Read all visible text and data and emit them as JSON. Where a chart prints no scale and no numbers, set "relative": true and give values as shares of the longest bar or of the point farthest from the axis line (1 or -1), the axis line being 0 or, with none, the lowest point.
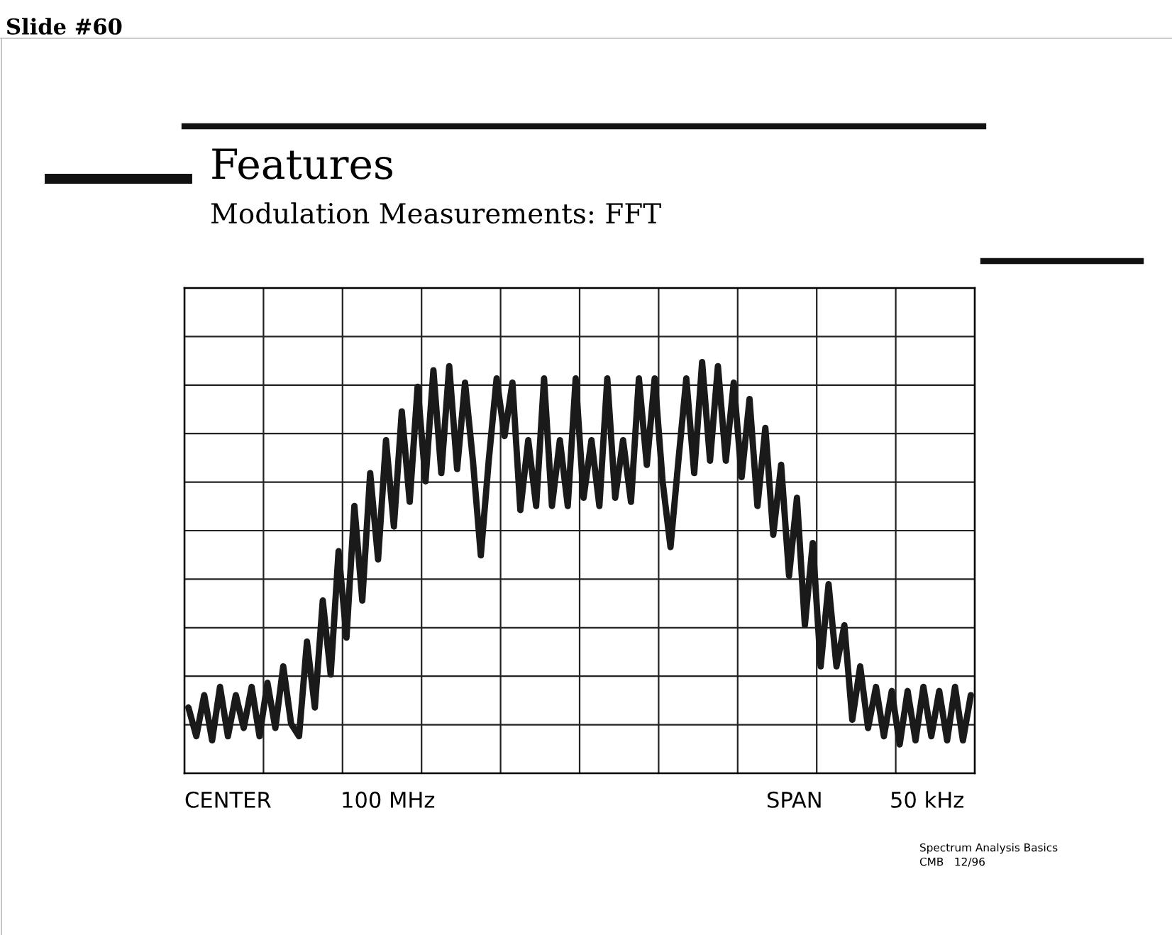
{
  "chart_data": {
    "type": "line",
    "title": "Features",
    "subtitle": "Modulation Measurements: FFT",
    "relative": true,
    "grid": true,
    "tick_labels": false,
    "color": "#1a1a1a",
    "categories": [
      null,
      null,
      null,
      null,
      null,
      null,
      null,
      null,
      null,
      null,
      null,
      null,
      null,
      null,
      null,
      null,
      null,
      null,
      null,
      null,
      null,
      null,
      null,
      null,
      null,
      null,
      null,
      null,
      null,
      null,
      null,
      null,
      null,
      null,
      null,
      null,
      null,
      null,
      null,
      null,
      null,
      null,
      null,
      null,
      null,
      null,
      null,
      null,
      null,
      null,
      null,
      null,
      null,
      null,
      null,
      null,
      null,
      null,
      null,
      null,
      null,
      null,
      null,
      null,
      null,
      null,
      null,
      null,
      null,
      null,
      null,
      null,
      null,
      null,
      null,
      null,
      null,
      null,
      null,
      null,
      null,
      null,
      null,
      null,
      null,
      null,
      null,
      null,
      null,
      null,
      null,
      null,
      null,
      null,
      null,
      null,
      null,
      null,
      null,
      null
    ],
    "values": [
      0.16,
      0.09,
      0.19,
      0.08,
      0.21,
      0.09,
      0.19,
      0.11,
      0.21,
      0.09,
      0.22,
      0.11,
      0.26,
      0.12,
      0.09,
      0.32,
      0.16,
      0.42,
      0.24,
      0.54,
      0.33,
      0.65,
      0.42,
      0.73,
      0.52,
      0.81,
      0.6,
      0.88,
      0.66,
      0.94,
      0.71,
      0.98,
      0.73,
      0.99,
      0.74,
      0.95,
      0.76,
      0.53,
      0.76,
      0.96,
      0.82,
      0.95,
      0.64,
      0.81,
      0.65,
      0.96,
      0.65,
      0.81,
      0.65,
      0.96,
      0.67,
      0.81,
      0.65,
      0.96,
      0.67,
      0.81,
      0.66,
      0.96,
      0.75,
      0.96,
      0.71,
      0.55,
      0.76,
      0.96,
      0.73,
      1,
      0.76,
      0.99,
      0.76,
      0.95,
      0.72,
      0.91,
      0.65,
      0.84,
      0.58,
      0.75,
      0.48,
      0.67,
      0.36,
      0.56,
      0.26,
      0.46,
      0.26,
      0.36,
      0.13,
      0.26,
      0.11,
      0.21,
      0.09,
      0.2,
      0.07,
      0.2,
      0.08,
      0.21,
      0.09,
      0.2,
      0.08,
      0.21,
      0.08,
      0.19
    ],
    "annotations": [
      "Slide #60",
      "CENTER",
      "100 MHz",
      "SPAN",
      "50 kHz",
      "Spectrum Analysis Basics",
      "CMB   12/96"
    ]
  }
}
